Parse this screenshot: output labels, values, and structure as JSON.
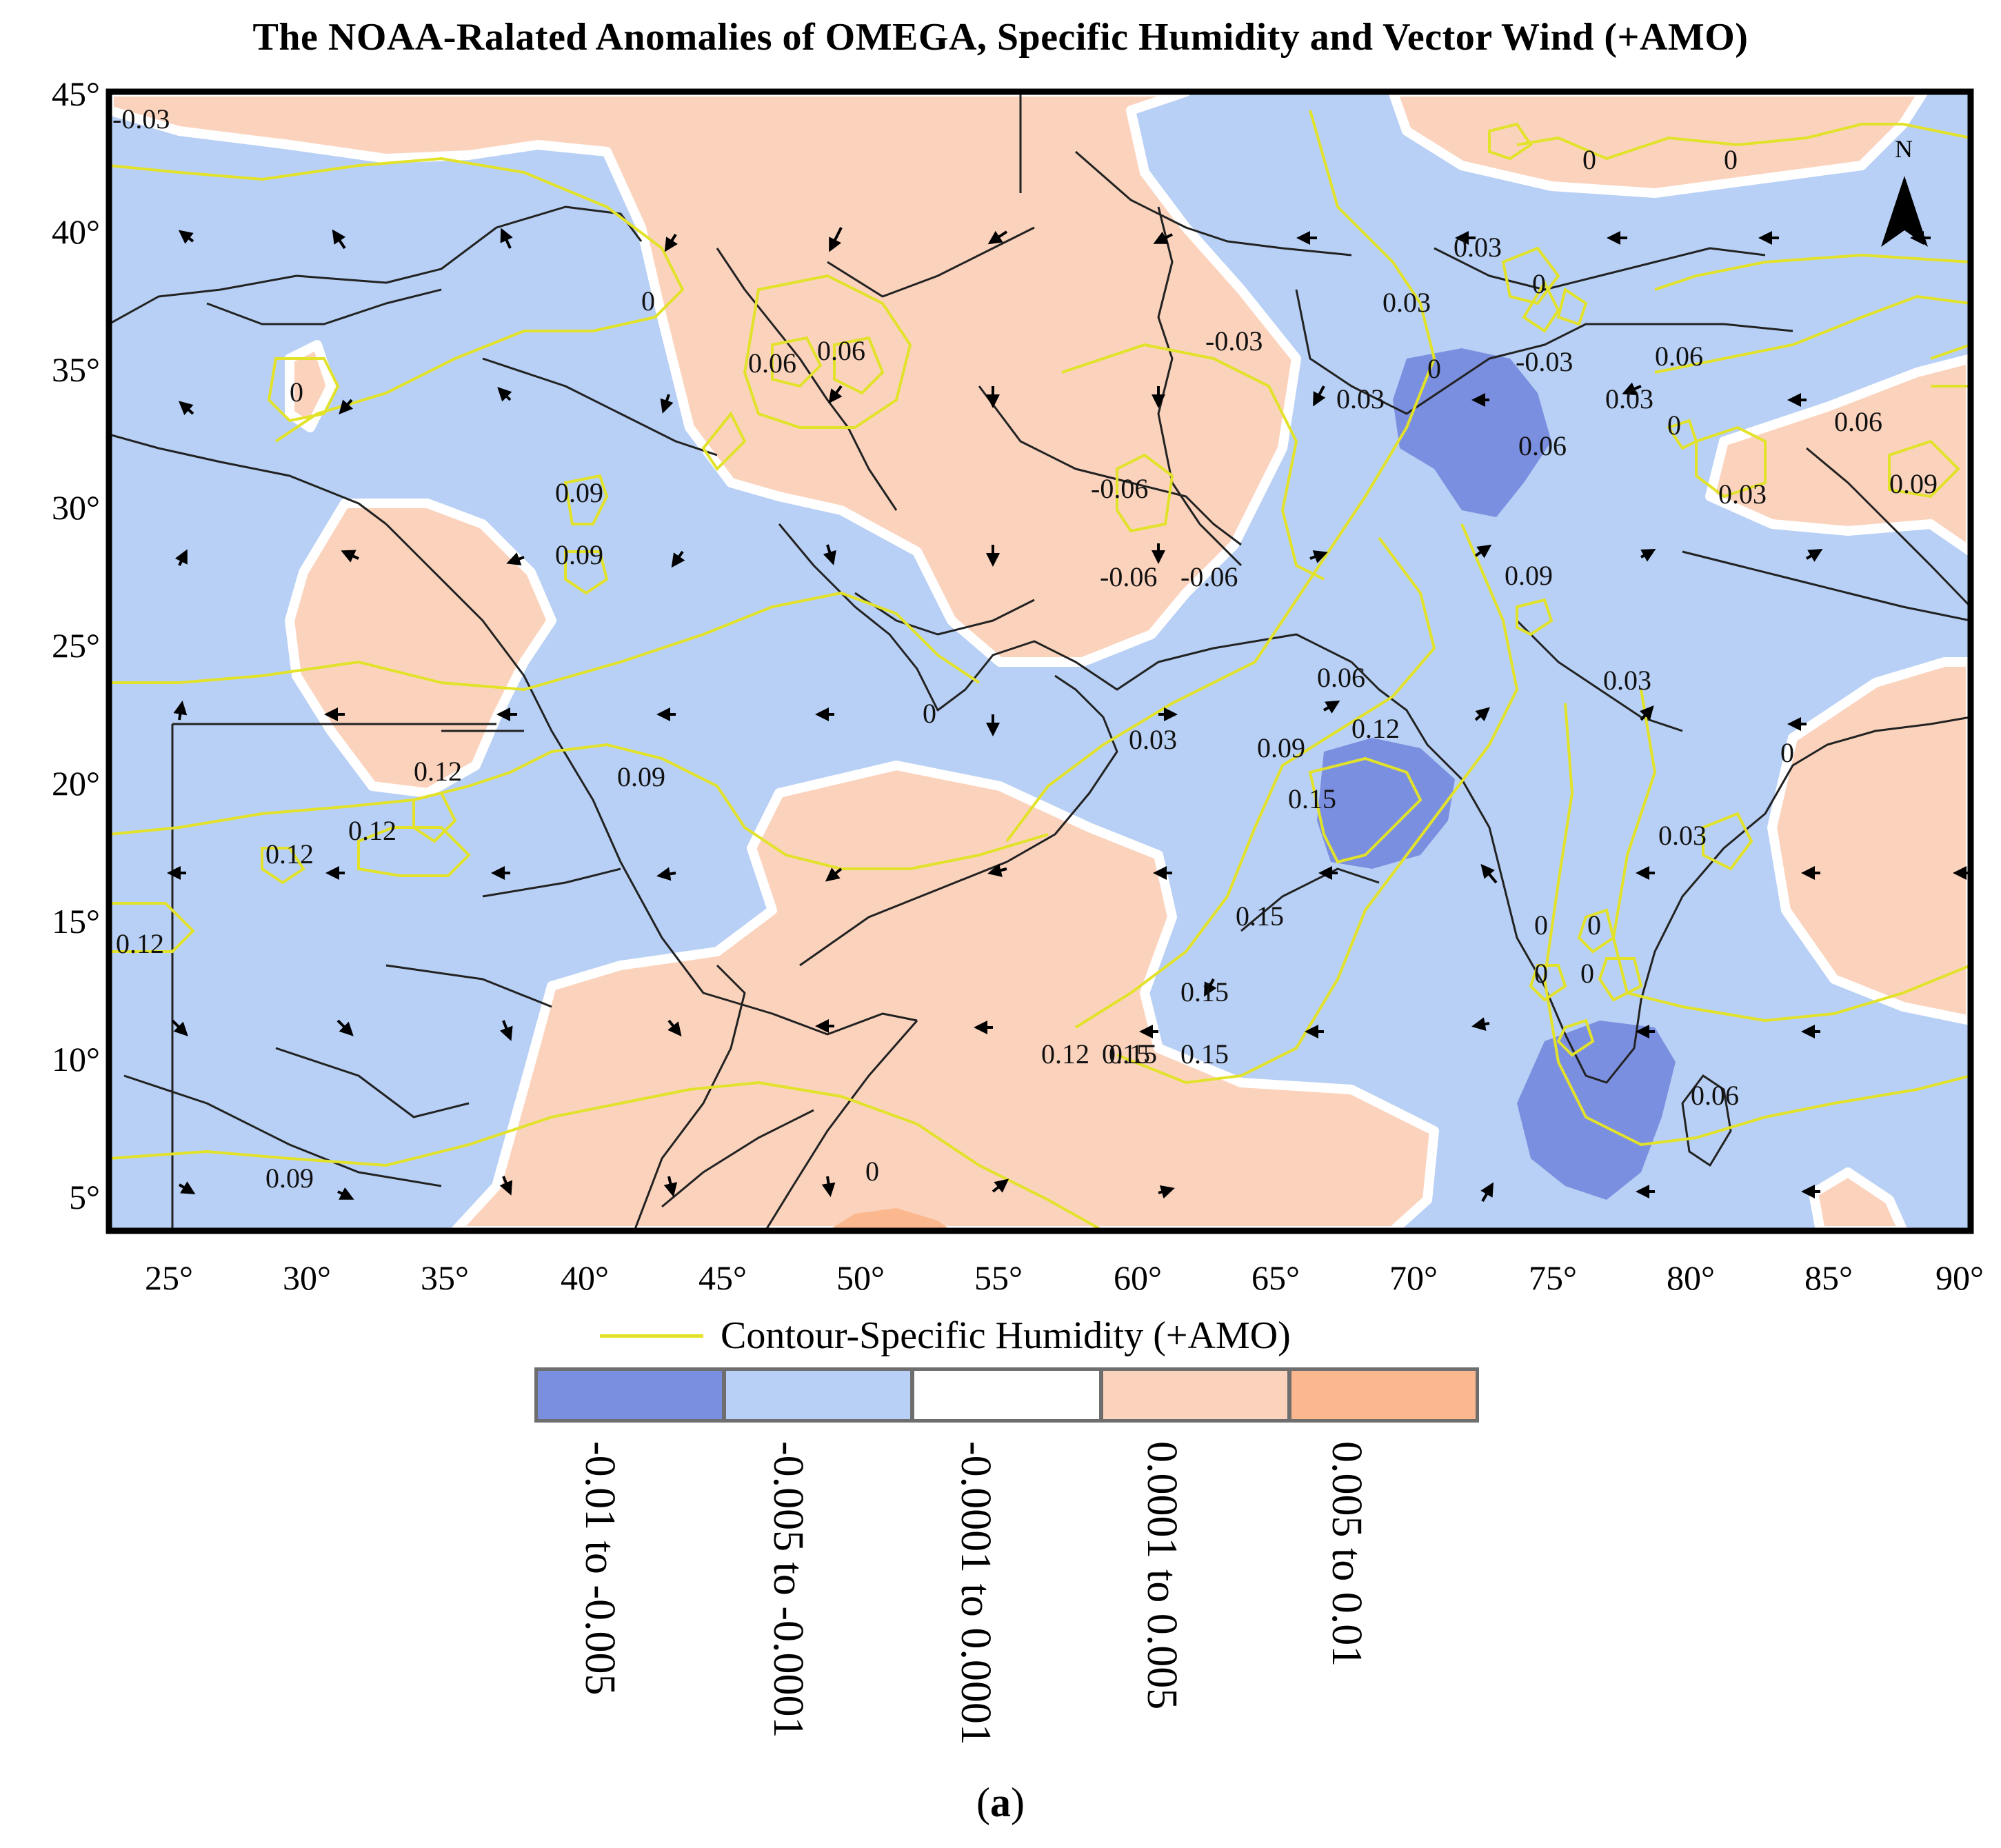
{
  "title": "The NOAA-Ralated Anomalies of OMEGA, Specific Humidity and Vector Wind (+AMO)",
  "north_label": "N",
  "lat_ticks": [
    "45°",
    "40°",
    "35°",
    "30°",
    "25°",
    "20°",
    "15°",
    "10°",
    "5°"
  ],
  "lon_ticks": [
    "25°",
    "30°",
    "35°",
    "40°",
    "45°",
    "50°",
    "55°",
    "60°",
    "65°",
    "70°",
    "75°",
    "80°",
    "85°",
    "90°"
  ],
  "legend": {
    "line_label": "Contour-Specific Humidity (+AMO)",
    "line_color": "#e2e22a",
    "classes": [
      {
        "label": "-0.01 to -0.005",
        "color": "#7b8fe0"
      },
      {
        "label": "-0.005 to -0.0001",
        "color": "#b8d0f5"
      },
      {
        "label": "-0.0001 to 0.0001",
        "color": "#ffffff"
      },
      {
        "label": "0.0001 to 0.005",
        "color": "#fbd3bd"
      },
      {
        "label": "0.005 to 0.01",
        "color": "#fbb88f"
      }
    ]
  },
  "contour_labels": [
    "-0.03",
    "0",
    "0",
    "0.06",
    "0.06",
    "0",
    "-0.03",
    "0.09",
    "0.09",
    "0.12",
    "0.12",
    "0.12",
    "0.12",
    "0.09",
    "0.09",
    "0",
    "0",
    "0.03",
    "0.09",
    "0.12",
    "0.15",
    "0.15",
    "0.15",
    "0.15",
    "0.12",
    "0.15",
    "0.15",
    "-0.06",
    "-0.06",
    "-0.06",
    "0.06",
    "0.03",
    "0.03",
    "-0.03",
    "0",
    "0",
    "0",
    "0.03",
    "0.06",
    "0.03",
    "0",
    "0.06",
    "0.09",
    "0.03",
    "0.06",
    "0.09",
    "0",
    "0.03",
    "0",
    "0",
    "0",
    "0",
    "0.06",
    "0.03"
  ],
  "caption_open": "(",
  "caption_letter": "a",
  "caption_close": ")"
}
